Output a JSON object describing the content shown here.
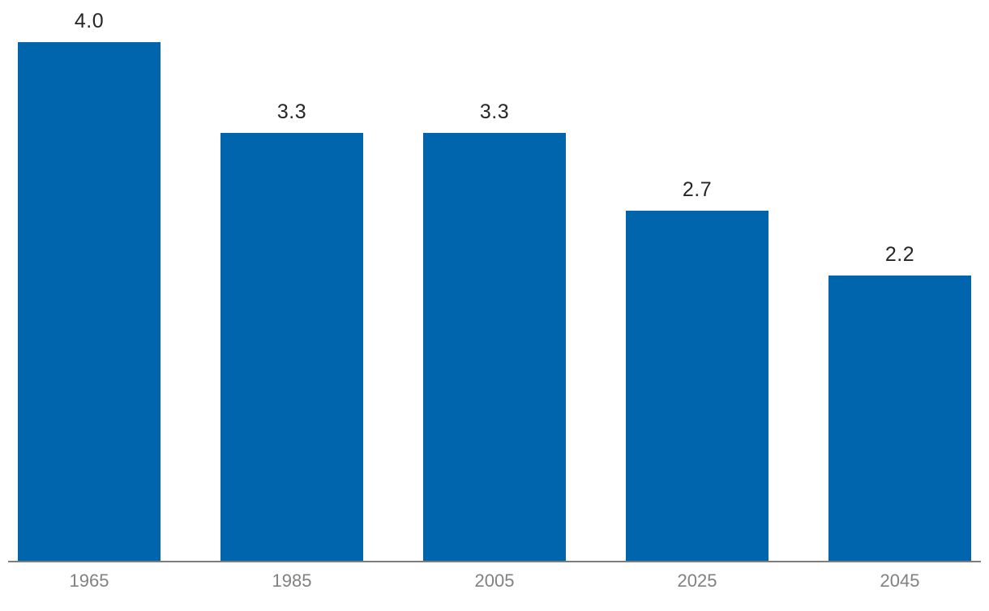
{
  "chart_data": {
    "type": "bar",
    "categories": [
      "1965",
      "1985",
      "2005",
      "2025",
      "2045"
    ],
    "values": [
      4.0,
      3.3,
      3.3,
      2.7,
      2.2
    ],
    "value_labels": [
      "4.0",
      "3.3",
      "3.3",
      "2.7",
      "2.2"
    ],
    "series_name": "",
    "title": "",
    "xlabel": "",
    "ylabel": "",
    "ylim": [
      0,
      4.33
    ],
    "grid": false,
    "legend": false,
    "data_labels_position": "above-bars",
    "colors": {
      "bar": "#0065AC",
      "value_label": "#262626",
      "tick_label": "#818181",
      "axis_line": "#7E7E7E",
      "background": "#FFFFFF"
    }
  }
}
